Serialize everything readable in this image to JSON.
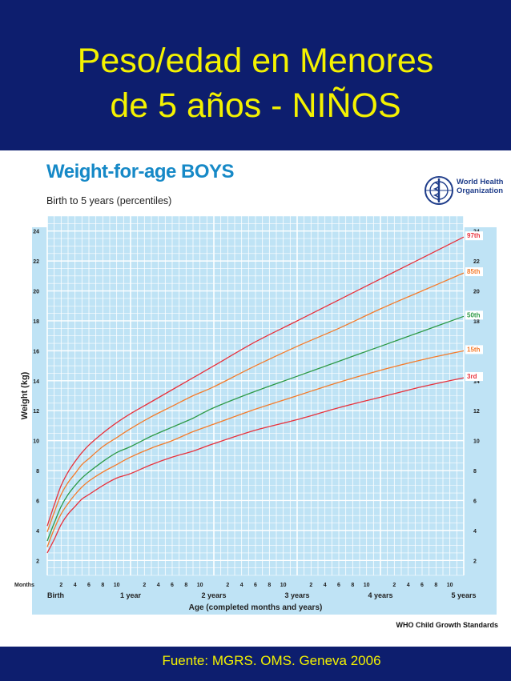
{
  "slide": {
    "title_line1": "Peso/edad en Menores",
    "title_line2": "de 5 años - NIÑOS",
    "source": "Fuente: MGRS. OMS. Geneva 2006",
    "colors": {
      "background": "#0d1e6e",
      "title": "#f4f200",
      "grid_bg": "#bfe3f5",
      "grid_line": "#ffffff"
    }
  },
  "who": {
    "org_name_line1": "World Health",
    "org_name_line2": "Organization",
    "standards": "WHO Child Growth Standards"
  },
  "chart_data": {
    "type": "line",
    "title": "Weight-for-age BOYS",
    "subtitle": "Birth to 5 years (percentiles)",
    "xlabel": "Age (completed months and years)",
    "ylabel": "Weight (kg)",
    "x_unit_label": "Months",
    "xlim": [
      0,
      60
    ],
    "ylim": [
      1,
      25
    ],
    "y_ticks": [
      2,
      4,
      6,
      8,
      10,
      12,
      14,
      16,
      18,
      20,
      22,
      24
    ],
    "month_tick_labels": [
      "2",
      "4",
      "6",
      "8",
      "10"
    ],
    "year_labels": [
      "Birth",
      "1 year",
      "2 years",
      "3 years",
      "4 years",
      "5 years"
    ],
    "grid": true,
    "legend_placement": "right-end labels",
    "x": [
      0,
      1,
      2,
      3,
      4,
      5,
      6,
      8,
      10,
      12,
      15,
      18,
      21,
      24,
      30,
      36,
      42,
      48,
      54,
      60
    ],
    "series": [
      {
        "name": "97th",
        "color": "#e8323c",
        "values": [
          4.3,
          5.7,
          7.0,
          7.9,
          8.6,
          9.2,
          9.7,
          10.5,
          11.2,
          11.8,
          12.6,
          13.4,
          14.2,
          15.0,
          16.6,
          18.0,
          19.4,
          20.8,
          22.2,
          23.6
        ]
      },
      {
        "name": "85th",
        "color": "#f47c2c",
        "values": [
          3.9,
          5.2,
          6.4,
          7.2,
          7.8,
          8.4,
          8.8,
          9.6,
          10.2,
          10.8,
          11.6,
          12.3,
          13.0,
          13.6,
          15.0,
          16.3,
          17.5,
          18.8,
          20.0,
          21.2
        ]
      },
      {
        "name": "50th",
        "color": "#2e9a47",
        "values": [
          3.3,
          4.5,
          5.6,
          6.4,
          7.0,
          7.5,
          7.9,
          8.6,
          9.2,
          9.6,
          10.3,
          10.9,
          11.5,
          12.2,
          13.3,
          14.3,
          15.3,
          16.3,
          17.3,
          18.3
        ]
      },
      {
        "name": "15th",
        "color": "#f47c2c",
        "values": [
          2.9,
          4.1,
          5.1,
          5.8,
          6.4,
          6.9,
          7.3,
          7.9,
          8.4,
          8.9,
          9.5,
          10.0,
          10.6,
          11.1,
          12.1,
          13.0,
          13.9,
          14.7,
          15.4,
          16.0
        ]
      },
      {
        "name": "3rd",
        "color": "#e8323c",
        "values": [
          2.5,
          3.4,
          4.4,
          5.1,
          5.6,
          6.1,
          6.4,
          7.0,
          7.5,
          7.8,
          8.4,
          8.9,
          9.3,
          9.8,
          10.7,
          11.4,
          12.2,
          12.9,
          13.6,
          14.2
        ]
      }
    ]
  }
}
